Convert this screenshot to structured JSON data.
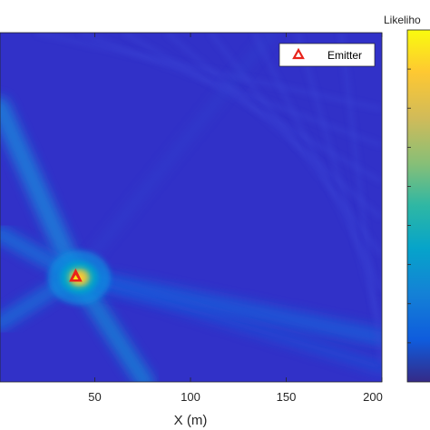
{
  "chart_data": {
    "type": "heatmap",
    "title": "",
    "xlabel": "X (m)",
    "ylabel": "",
    "xlim": [
      0,
      200
    ],
    "x_ticks": [
      50,
      100,
      150,
      200
    ],
    "x_tick_labels": [
      "50",
      "100",
      "150",
      "200"
    ],
    "colorbar": {
      "label": "Likeliho",
      "colormap": "parula",
      "colors": [
        "#352a87",
        "#0f5cdd",
        "#1481d6",
        "#06a4ca",
        "#2eb7a4",
        "#87bf77",
        "#d1bb59",
        "#fec832",
        "#f9fb0e"
      ]
    },
    "emitter": {
      "x": 40,
      "label": "Emitter",
      "marker": "triangle",
      "marker_color": "#e8231b"
    },
    "legend": {
      "position": "top-right",
      "entries": [
        "Emitter"
      ]
    },
    "background_color": "#3131c8"
  }
}
